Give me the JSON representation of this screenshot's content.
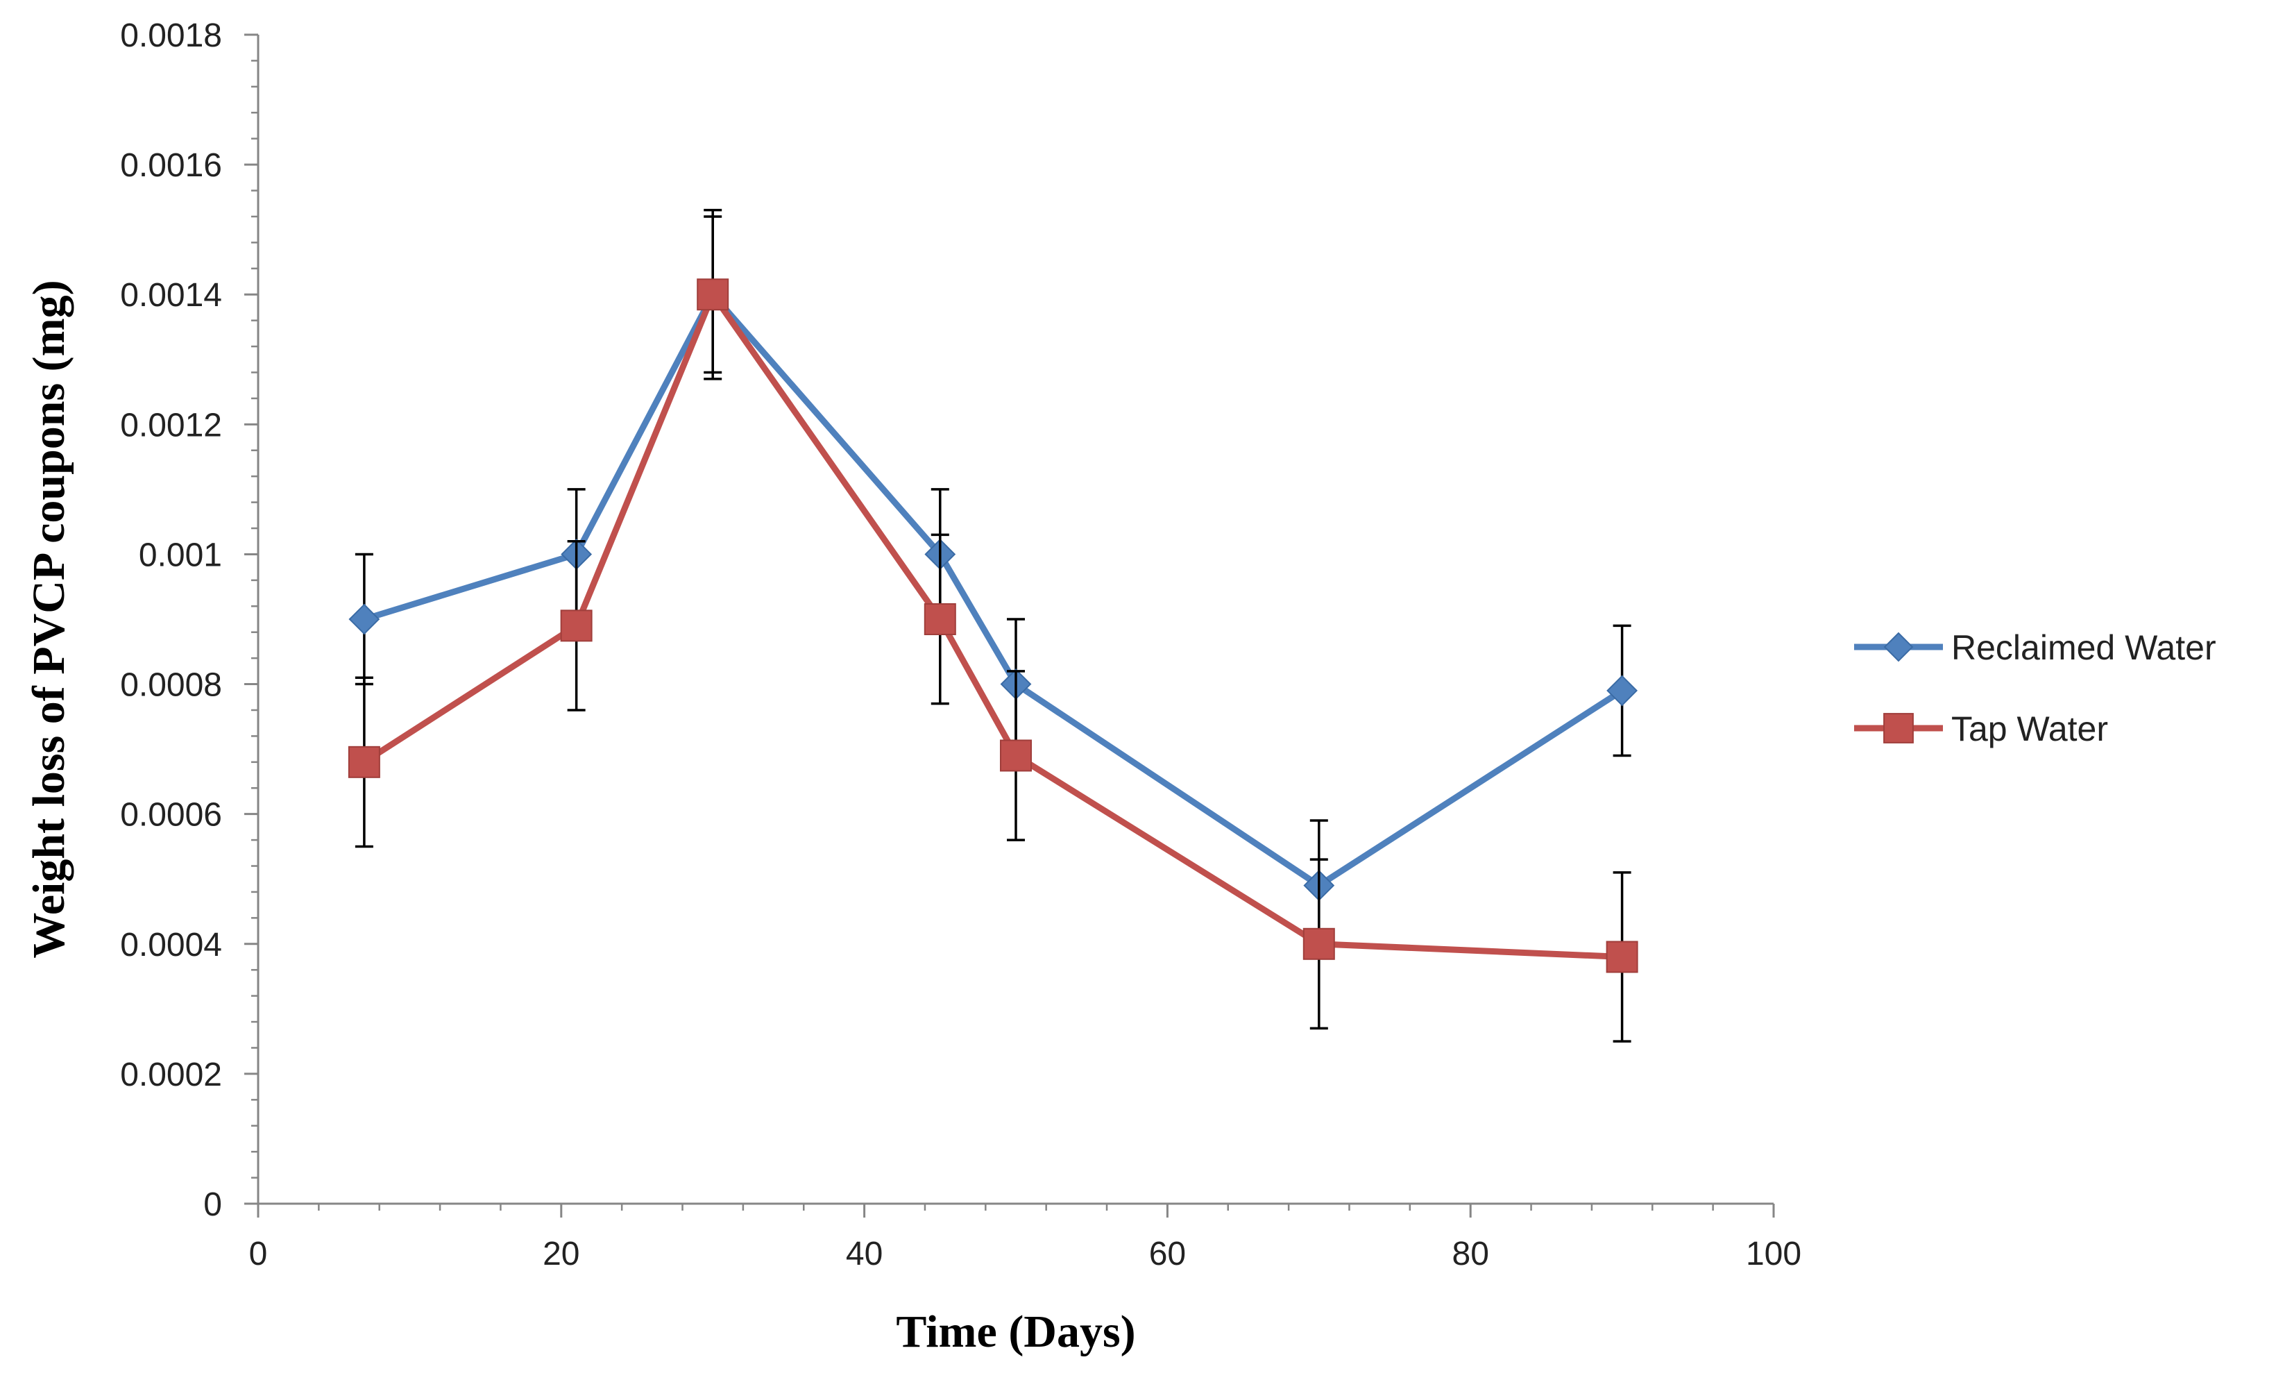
{
  "chart_data": {
    "type": "line",
    "title": "",
    "xlabel": "Time (Days)",
    "ylabel": "Weight loss of PVCP coupons (mg)",
    "xlim": [
      0,
      100
    ],
    "ylim": [
      0,
      0.0018
    ],
    "x_ticks": [
      "0",
      "20",
      "40",
      "60",
      "80",
      "100"
    ],
    "y_ticks": [
      "0",
      "0.0002",
      "0.0004",
      "0.0006",
      "0.0008",
      "0.001",
      "0.0012",
      "0.0014",
      "0.0016",
      "0.0018"
    ],
    "grid": false,
    "legend_position": "right",
    "series": [
      {
        "name": "Reclaimed Water",
        "color": "#4F81BD",
        "marker": "diamond",
        "x": [
          7,
          21,
          30,
          45,
          50,
          70,
          90
        ],
        "y": [
          0.0009,
          0.001,
          0.0014,
          0.001,
          0.0008,
          0.00049,
          0.00079
        ],
        "error": [
          0.0001,
          0.0001,
          0.00013,
          0.0001,
          0.0001,
          0.0001,
          0.0001
        ]
      },
      {
        "name": "Tap Water",
        "color": "#C0504D",
        "marker": "square",
        "x": [
          7,
          21,
          30,
          45,
          50,
          70,
          90
        ],
        "y": [
          0.00068,
          0.00089,
          0.0014,
          0.0009,
          0.00069,
          0.0004,
          0.00038
        ],
        "error": [
          0.00013,
          0.00013,
          0.00012,
          0.00013,
          0.00013,
          0.00013,
          0.00013
        ]
      }
    ]
  }
}
